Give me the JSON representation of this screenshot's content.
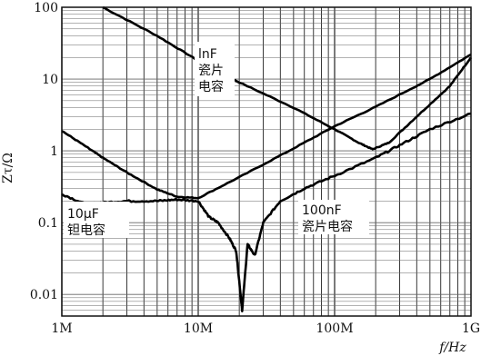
{
  "chart_data": {
    "type": "line",
    "xlabel": "f/Hz",
    "ylabel": "Zτ/Ω",
    "x_scale": "log",
    "y_scale": "log",
    "xlim": [
      1000000,
      1000000000
    ],
    "ylim": [
      0.005,
      100
    ],
    "grid": true,
    "x_ticks": [
      {
        "value": 1000000,
        "label": "1M"
      },
      {
        "value": 10000000,
        "label": "10M"
      },
      {
        "value": 100000000,
        "label": "100M"
      },
      {
        "value": 1000000000,
        "label": "1G"
      }
    ],
    "y_ticks": [
      {
        "value": 100,
        "label": "100"
      },
      {
        "value": 10,
        "label": "10"
      },
      {
        "value": 1,
        "label": "1"
      },
      {
        "value": 0.1,
        "label": "0.1"
      },
      {
        "value": 0.01,
        "label": "0.01"
      }
    ],
    "series": [
      {
        "key": "1nF-ceramic",
        "x": [
          2000000,
          5000000,
          10000000,
          20000000,
          50000000,
          100000000,
          150000000,
          190000000,
          250000000,
          400000000,
          700000000,
          1000000000
        ],
        "y": [
          100,
          40,
          18,
          9,
          4,
          2,
          1.3,
          1.05,
          1.3,
          3,
          8,
          20
        ]
      },
      {
        "key": "10uF-tantalum",
        "x": [
          1000000,
          1500000,
          2000000,
          3000000,
          5000000,
          7000000,
          10000000,
          20000000,
          50000000,
          100000000,
          200000000,
          500000000,
          1000000000
        ],
        "y": [
          1.9,
          1.15,
          0.8,
          0.5,
          0.29,
          0.23,
          0.22,
          0.43,
          1.08,
          2.2,
          4.1,
          10,
          22
        ]
      },
      {
        "key": "100nF-ceramic",
        "x": [
          1000000,
          1500000,
          2000000,
          3000000,
          5000000,
          7000000,
          10000000,
          12000000,
          14000000,
          17000000,
          19000000,
          21000000,
          23000000,
          26000000,
          30000000,
          40000000,
          60000000,
          100000000,
          200000000,
          300000000,
          500000000,
          1000000000
        ],
        "y": [
          0.25,
          0.18,
          0.19,
          0.2,
          0.2,
          0.21,
          0.2,
          0.12,
          0.1,
          0.06,
          0.04,
          0.006,
          0.05,
          0.035,
          0.1,
          0.2,
          0.3,
          0.45,
          0.8,
          1.2,
          2,
          3.3
        ]
      }
    ],
    "annotations": [
      {
        "key": "a1",
        "lines": [
          "lnF",
          "瓷片",
          "电容"
        ]
      },
      {
        "key": "a2",
        "lines": [
          "10μF",
          "钽电容"
        ]
      },
      {
        "key": "a3",
        "lines": [
          "100nF",
          "瓷片电容"
        ]
      }
    ]
  }
}
